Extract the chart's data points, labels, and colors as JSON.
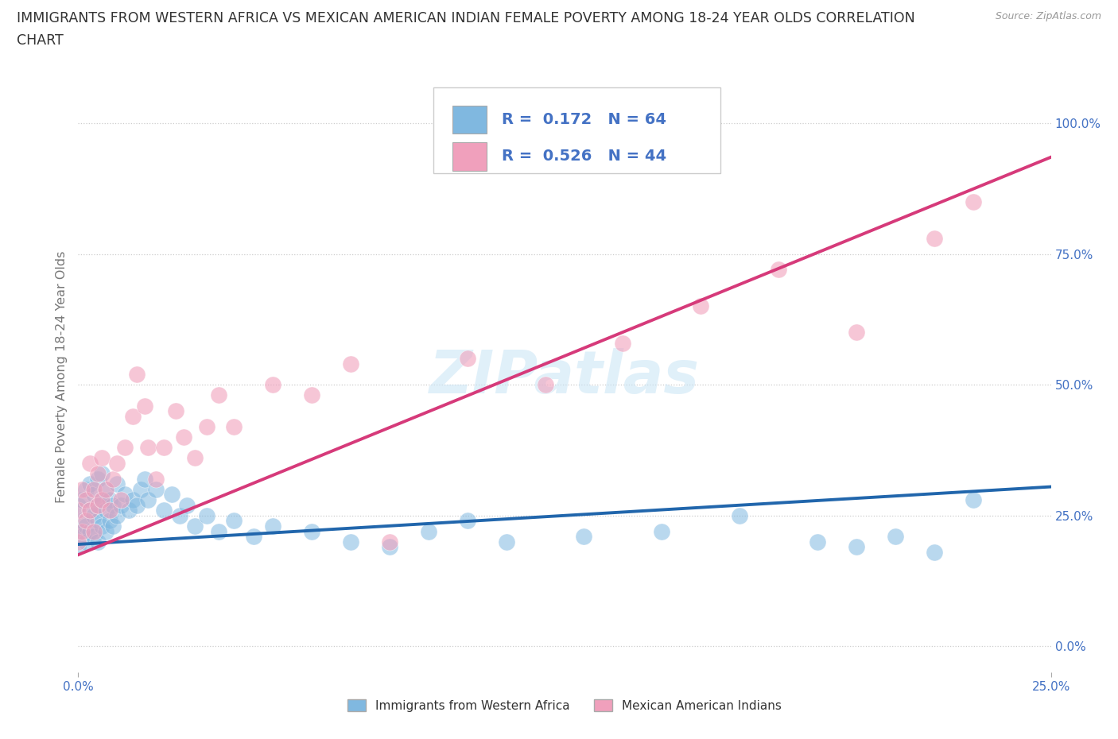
{
  "title_line1": "IMMIGRANTS FROM WESTERN AFRICA VS MEXICAN AMERICAN INDIAN FEMALE POVERTY AMONG 18-24 YEAR OLDS CORRELATION",
  "title_line2": "CHART",
  "source": "Source: ZipAtlas.com",
  "ylabel": "Female Poverty Among 18-24 Year Olds",
  "xlim": [
    0.0,
    0.25
  ],
  "ylim": [
    -0.05,
    1.08
  ],
  "yticks": [
    0.0,
    0.25,
    0.5,
    0.75,
    1.0
  ],
  "ytick_labels": [
    "0.0%",
    "25.0%",
    "50.0%",
    "75.0%",
    "100.0%"
  ],
  "xticks": [
    0.0,
    0.25
  ],
  "xtick_labels": [
    "0.0%",
    "25.0%"
  ],
  "blue_R": "0.172",
  "blue_N": "64",
  "pink_R": "0.526",
  "pink_N": "44",
  "blue_scatter_color": "#80b8e0",
  "pink_scatter_color": "#f0a0bc",
  "blue_line_color": "#2166ac",
  "pink_line_color": "#d63a7a",
  "legend_label_blue": "Immigrants from Western Africa",
  "legend_label_pink": "Mexican American Indians",
  "watermark": "ZIPatlas",
  "grid_color": "#cccccc",
  "title_color": "#333333",
  "axis_label_color": "#777777",
  "tick_color": "#4472c4",
  "blue_scatter_x": [
    0.0,
    0.0,
    0.0,
    0.001,
    0.001,
    0.001,
    0.002,
    0.002,
    0.002,
    0.003,
    0.003,
    0.003,
    0.004,
    0.004,
    0.004,
    0.005,
    0.005,
    0.005,
    0.005,
    0.006,
    0.006,
    0.006,
    0.007,
    0.007,
    0.007,
    0.008,
    0.008,
    0.009,
    0.009,
    0.01,
    0.01,
    0.011,
    0.012,
    0.013,
    0.014,
    0.015,
    0.016,
    0.017,
    0.018,
    0.02,
    0.022,
    0.024,
    0.026,
    0.028,
    0.03,
    0.033,
    0.036,
    0.04,
    0.045,
    0.05,
    0.06,
    0.07,
    0.08,
    0.09,
    0.1,
    0.11,
    0.13,
    0.15,
    0.17,
    0.19,
    0.2,
    0.21,
    0.22,
    0.23
  ],
  "blue_scatter_y": [
    0.22,
    0.27,
    0.19,
    0.24,
    0.21,
    0.28,
    0.23,
    0.3,
    0.2,
    0.26,
    0.22,
    0.31,
    0.25,
    0.29,
    0.21,
    0.24,
    0.27,
    0.2,
    0.32,
    0.23,
    0.28,
    0.33,
    0.22,
    0.26,
    0.3,
    0.24,
    0.28,
    0.23,
    0.27,
    0.25,
    0.31,
    0.27,
    0.29,
    0.26,
    0.28,
    0.27,
    0.3,
    0.32,
    0.28,
    0.3,
    0.26,
    0.29,
    0.25,
    0.27,
    0.23,
    0.25,
    0.22,
    0.24,
    0.21,
    0.23,
    0.22,
    0.2,
    0.19,
    0.22,
    0.24,
    0.2,
    0.21,
    0.22,
    0.25,
    0.2,
    0.19,
    0.21,
    0.18,
    0.28
  ],
  "pink_scatter_x": [
    0.0,
    0.0,
    0.001,
    0.001,
    0.002,
    0.002,
    0.003,
    0.003,
    0.004,
    0.004,
    0.005,
    0.005,
    0.006,
    0.006,
    0.007,
    0.008,
    0.009,
    0.01,
    0.011,
    0.012,
    0.014,
    0.015,
    0.017,
    0.018,
    0.02,
    0.022,
    0.025,
    0.027,
    0.03,
    0.033,
    0.036,
    0.04,
    0.05,
    0.06,
    0.07,
    0.08,
    0.1,
    0.12,
    0.14,
    0.16,
    0.18,
    0.2,
    0.22,
    0.23
  ],
  "pink_scatter_y": [
    0.2,
    0.26,
    0.22,
    0.3,
    0.24,
    0.28,
    0.26,
    0.35,
    0.3,
    0.22,
    0.27,
    0.33,
    0.28,
    0.36,
    0.3,
    0.26,
    0.32,
    0.35,
    0.28,
    0.38,
    0.44,
    0.52,
    0.46,
    0.38,
    0.32,
    0.38,
    0.45,
    0.4,
    0.36,
    0.42,
    0.48,
    0.42,
    0.5,
    0.48,
    0.54,
    0.2,
    0.55,
    0.5,
    0.58,
    0.65,
    0.72,
    0.6,
    0.78,
    0.85
  ]
}
